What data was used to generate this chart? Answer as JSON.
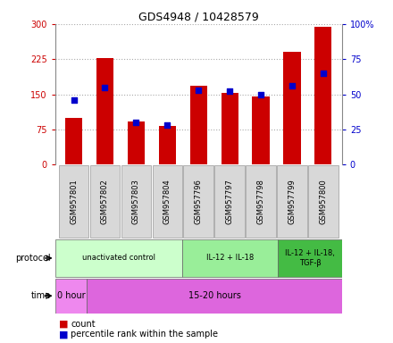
{
  "title": "GDS4948 / 10428579",
  "samples": [
    "GSM957801",
    "GSM957802",
    "GSM957803",
    "GSM957804",
    "GSM957796",
    "GSM957797",
    "GSM957798",
    "GSM957799",
    "GSM957800"
  ],
  "counts": [
    100,
    228,
    92,
    83,
    168,
    153,
    145,
    240,
    295
  ],
  "percentile_ranks": [
    46,
    55,
    30,
    28,
    53,
    52,
    50,
    56,
    65
  ],
  "ylim_left": [
    0,
    300
  ],
  "ylim_right": [
    0,
    100
  ],
  "yticks_left": [
    0,
    75,
    150,
    225,
    300
  ],
  "ytick_labels_left": [
    "0",
    "75",
    "150",
    "225",
    "300"
  ],
  "yticks_right": [
    0,
    25,
    50,
    75,
    100
  ],
  "ytick_labels_right": [
    "0",
    "25",
    "50",
    "75",
    "100%"
  ],
  "bar_color": "#cc0000",
  "dot_color": "#0000cc",
  "left_tick_color": "#cc0000",
  "right_tick_color": "#0000cc",
  "grid_color": "#aaaaaa",
  "protocol_groups": [
    {
      "label": "unactivated control",
      "start": 0,
      "end": 4,
      "color": "#ccffcc"
    },
    {
      "label": "IL-12 + IL-18",
      "start": 4,
      "end": 7,
      "color": "#99ee99"
    },
    {
      "label": "IL-12 + IL-18,\nTGF-β",
      "start": 7,
      "end": 9,
      "color": "#44bb44"
    }
  ],
  "time_groups": [
    {
      "label": "0 hour",
      "start": 0,
      "end": 1,
      "color": "#ee88ee"
    },
    {
      "label": "15-20 hours",
      "start": 1,
      "end": 9,
      "color": "#dd66dd"
    }
  ],
  "legend_count_label": "count",
  "legend_pct_label": "percentile rank within the sample",
  "bar_width": 0.55
}
